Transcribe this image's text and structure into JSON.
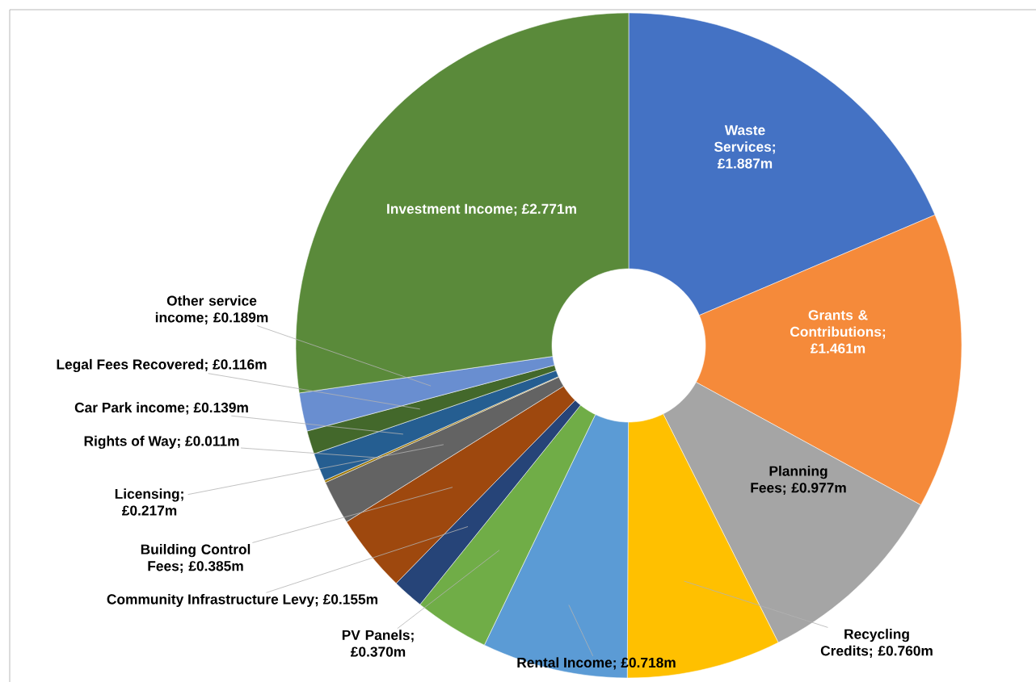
{
  "chart_data": {
    "type": "donut",
    "categories": [
      "Waste Services; £1.887m",
      "Grants & Contributions; £1.461m",
      "Planning Fees; £0.977m",
      "Recycling Credits; £0.760m",
      "Rental Income; £0.718m",
      "PV Panels; £0.370m",
      "Community Infrastructure Levy; £0.155m",
      "Building Control Fees; £0.385m",
      "Licensing; £0.217m",
      "Rights of Way; £0.011m",
      "Car Park income; £0.139m",
      "Legal Fees Recovered; £0.116m",
      "Other service income; £0.189m",
      "Investment Income; £2.771m"
    ],
    "values": [
      1.887,
      1.461,
      0.977,
      0.76,
      0.718,
      0.37,
      0.155,
      0.385,
      0.217,
      0.011,
      0.139,
      0.116,
      0.189,
      2.771
    ],
    "colors": [
      "#4472c4",
      "#f58a3a",
      "#a5a5a5",
      "#ffc000",
      "#5b9bd5",
      "#70ad47",
      "#264478",
      "#9e480e",
      "#636363",
      "#997300",
      "#255e91",
      "#43682b",
      "#698ed0",
      "#5a8a3a"
    ]
  }
}
